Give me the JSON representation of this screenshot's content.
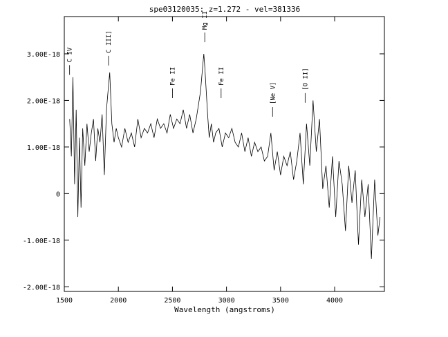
{
  "chart_data": {
    "type": "line",
    "title": "spe03120035: z=1.272 - vel=381336",
    "xlabel": "Wavelength (angstroms)",
    "ylabel": "",
    "xlim": [
      1500,
      4460
    ],
    "ylim": [
      -2.1e-18,
      3.8e-18
    ],
    "x_ticks": [
      1500,
      2000,
      2500,
      3000,
      3500,
      4000
    ],
    "x_tick_labels": [
      "1500",
      "2000",
      "2500",
      "3000",
      "3500",
      "4000"
    ],
    "y_ticks": [
      -2e-18,
      -1e-18,
      0,
      1e-18,
      2e-18,
      3e-18
    ],
    "y_tick_labels": [
      "-2.00E-18",
      "-1.00E-18",
      "0",
      "1.00E-18",
      "2.00E-18",
      "3.00E-18"
    ],
    "grid": false,
    "line_color": "#000000",
    "series": [
      {
        "x": [
          1550,
          1565,
          1580,
          1595,
          1610,
          1625,
          1640,
          1655,
          1670,
          1690,
          1710,
          1730,
          1750,
          1770,
          1790,
          1810,
          1830,
          1850,
          1870,
          1890,
          1905,
          1920,
          1940,
          1960,
          1980,
          2000,
          2030,
          2060,
          2090,
          2120,
          2150,
          2180,
          2210,
          2240,
          2270,
          2300,
          2330,
          2360,
          2390,
          2420,
          2450,
          2480,
          2510,
          2540,
          2570,
          2600,
          2630,
          2660,
          2690,
          2720,
          2740,
          2760,
          2775,
          2790,
          2800,
          2810,
          2825,
          2840,
          2860,
          2880,
          2900,
          2930,
          2960,
          2990,
          3020,
          3050,
          3080,
          3110,
          3140,
          3170,
          3200,
          3230,
          3260,
          3290,
          3320,
          3350,
          3380,
          3410,
          3440,
          3470,
          3500,
          3530,
          3560,
          3590,
          3620,
          3650,
          3680,
          3710,
          3740,
          3770,
          3800,
          3830,
          3860,
          3890,
          3920,
          3950,
          3980,
          4010,
          4040,
          4070,
          4100,
          4130,
          4160,
          4190,
          4220,
          4250,
          4280,
          4310,
          4340,
          4370,
          4400,
          4420
        ],
        "y": [
          1.6e-18,
          8e-19,
          2.5e-18,
          2e-19,
          1.8e-18,
          -5e-19,
          1.2e-18,
          -3e-19,
          1.4e-18,
          6e-19,
          1.5e-18,
          9e-19,
          1.3e-18,
          1.6e-18,
          7e-19,
          1.4e-18,
          1.1e-18,
          1.7e-18,
          4e-19,
          1.8e-18,
          2.2e-18,
          2.6e-18,
          1.5e-18,
          1.1e-18,
          1.4e-18,
          1.2e-18,
          1e-18,
          1.4e-18,
          1.1e-18,
          1.3e-18,
          1e-18,
          1.6e-18,
          1.2e-18,
          1.4e-18,
          1.3e-18,
          1.5e-18,
          1.2e-18,
          1.6e-18,
          1.4e-18,
          1.5e-18,
          1.3e-18,
          1.7e-18,
          1.4e-18,
          1.6e-18,
          1.5e-18,
          1.8e-18,
          1.4e-18,
          1.7e-18,
          1.3e-18,
          1.6e-18,
          1.9e-18,
          2.2e-18,
          2.6e-18,
          3e-18,
          2.7e-18,
          2.3e-18,
          1.7e-18,
          1.2e-18,
          1.5e-18,
          1.1e-18,
          1.3e-18,
          1.4e-18,
          1e-18,
          1.3e-18,
          1.2e-18,
          1.4e-18,
          1.1e-18,
          1e-18,
          1.3e-18,
          9e-19,
          1.2e-18,
          8e-19,
          1.1e-18,
          9e-19,
          1e-18,
          7e-19,
          8e-19,
          1.3e-18,
          5e-19,
          9e-19,
          4e-19,
          8e-19,
          6e-19,
          9e-19,
          3e-19,
          7e-19,
          1.3e-18,
          2e-19,
          1.5e-18,
          6e-19,
          2e-18,
          9e-19,
          1.6e-18,
          1e-19,
          6e-19,
          -3e-19,
          8e-19,
          -5e-19,
          7e-19,
          2e-19,
          -8e-19,
          6e-19,
          -2e-19,
          5e-19,
          -1.1e-18,
          3e-19,
          -5e-19,
          2e-19,
          -1.4e-18,
          3e-19,
          -9e-19,
          -5e-19
        ]
      }
    ],
    "annotations": [
      {
        "label": "C IV",
        "x": 1549,
        "y": 2.55e-18
      },
      {
        "label": "C III]",
        "x": 1909,
        "y": 2.75e-18
      },
      {
        "label": "Fe II",
        "x": 2500,
        "y": 2.05e-18
      },
      {
        "label": "Mg II",
        "x": 2799,
        "y": 3.25e-18
      },
      {
        "label": "Fe II",
        "x": 2950,
        "y": 2.05e-18
      },
      {
        "label": "[Ne V]",
        "x": 3426,
        "y": 1.65e-18
      },
      {
        "label": "[O II]",
        "x": 3727,
        "y": 1.95e-18
      }
    ]
  }
}
